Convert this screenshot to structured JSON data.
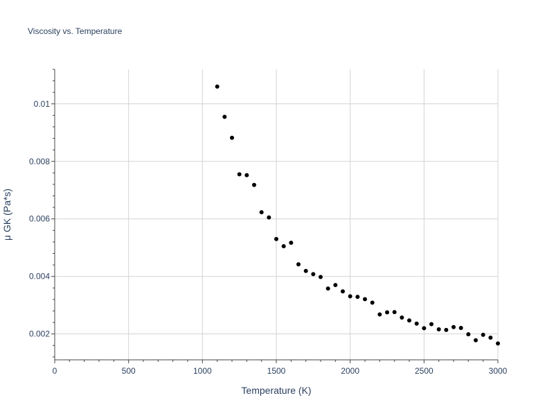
{
  "chart_data": {
    "type": "scatter",
    "title": "Viscosity vs. Temperature",
    "xlabel": "Temperature (K)",
    "ylabel": "μ GK (Pa*s)",
    "xlim": [
      0,
      3000
    ],
    "ylim": [
      0.0011,
      0.0112
    ],
    "x_ticks": [
      0,
      500,
      1000,
      1500,
      2000,
      2500,
      3000
    ],
    "x_tick_labels": [
      "0",
      "500",
      "1000",
      "1500",
      "2000",
      "2500",
      "3000"
    ],
    "y_ticks": [
      0.002,
      0.004,
      0.006,
      0.008,
      0.01
    ],
    "y_tick_labels": [
      "0.002",
      "0.004",
      "0.006",
      "0.008",
      "0.01"
    ],
    "grid": true,
    "marker_color": "#000000",
    "grid_color": "#d3d3d3",
    "axis_color": "#2a3f5f",
    "points": [
      {
        "x": 1100,
        "y": 0.0106
      },
      {
        "x": 1150,
        "y": 0.00955
      },
      {
        "x": 1200,
        "y": 0.00882
      },
      {
        "x": 1250,
        "y": 0.00755
      },
      {
        "x": 1300,
        "y": 0.00752
      },
      {
        "x": 1350,
        "y": 0.00718
      },
      {
        "x": 1400,
        "y": 0.00623
      },
      {
        "x": 1450,
        "y": 0.00605
      },
      {
        "x": 1500,
        "y": 0.0053
      },
      {
        "x": 1550,
        "y": 0.00505
      },
      {
        "x": 1600,
        "y": 0.00517
      },
      {
        "x": 1650,
        "y": 0.00442
      },
      {
        "x": 1700,
        "y": 0.00419
      },
      {
        "x": 1750,
        "y": 0.00408
      },
      {
        "x": 1800,
        "y": 0.00398
      },
      {
        "x": 1850,
        "y": 0.00358
      },
      {
        "x": 1900,
        "y": 0.0037
      },
      {
        "x": 1950,
        "y": 0.00348
      },
      {
        "x": 2000,
        "y": 0.00331
      },
      {
        "x": 2050,
        "y": 0.00329
      },
      {
        "x": 2100,
        "y": 0.00321
      },
      {
        "x": 2150,
        "y": 0.00309
      },
      {
        "x": 2200,
        "y": 0.00268
      },
      {
        "x": 2250,
        "y": 0.00275
      },
      {
        "x": 2300,
        "y": 0.00276
      },
      {
        "x": 2350,
        "y": 0.00257
      },
      {
        "x": 2400,
        "y": 0.00247
      },
      {
        "x": 2450,
        "y": 0.00236
      },
      {
        "x": 2500,
        "y": 0.0022
      },
      {
        "x": 2550,
        "y": 0.00234
      },
      {
        "x": 2600,
        "y": 0.00216
      },
      {
        "x": 2650,
        "y": 0.00214
      },
      {
        "x": 2700,
        "y": 0.00224
      },
      {
        "x": 2750,
        "y": 0.00221
      },
      {
        "x": 2800,
        "y": 0.00199
      },
      {
        "x": 2850,
        "y": 0.00178
      },
      {
        "x": 2900,
        "y": 0.00197
      },
      {
        "x": 2950,
        "y": 0.00187
      },
      {
        "x": 3000,
        "y": 0.00167
      }
    ]
  }
}
